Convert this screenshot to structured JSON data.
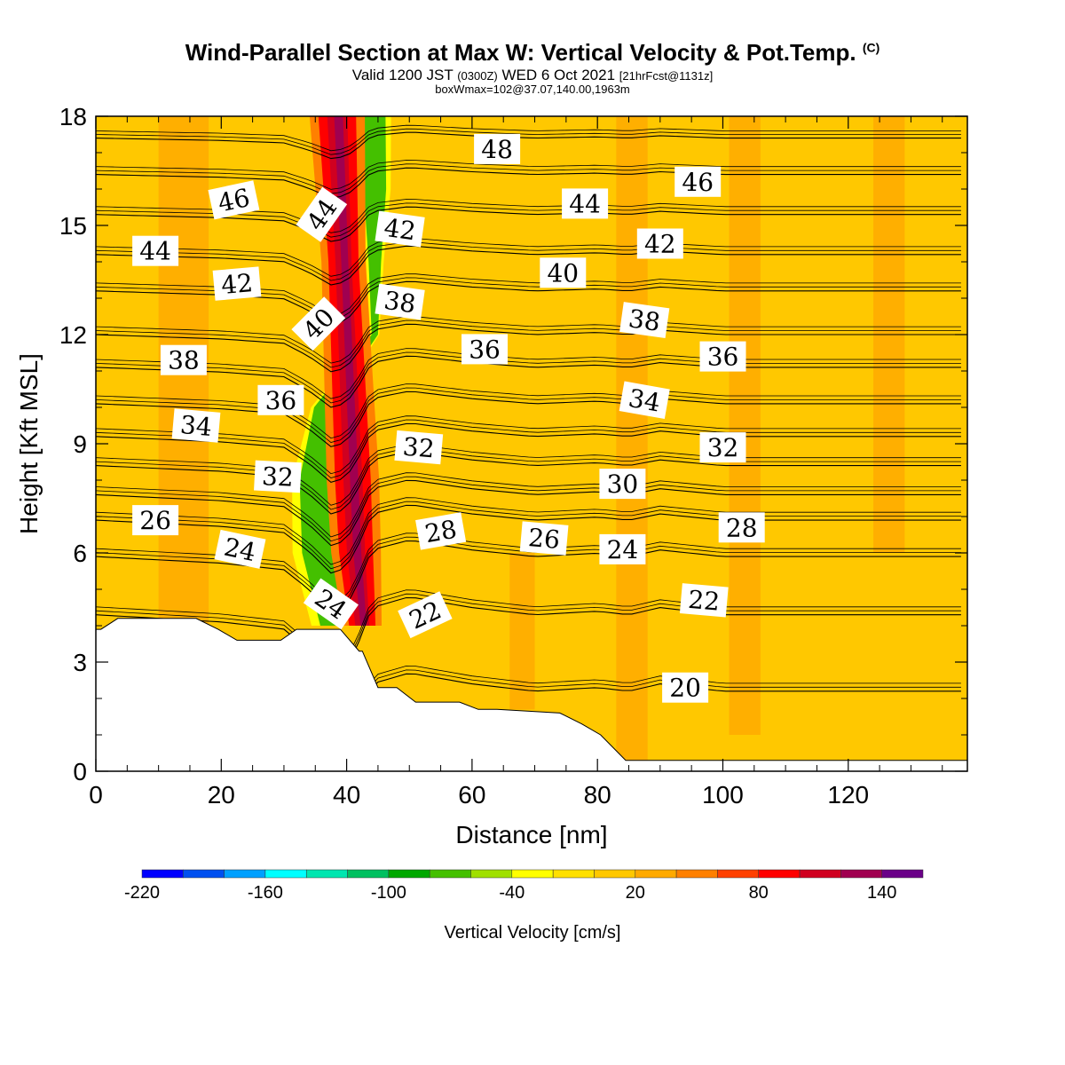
{
  "title": {
    "main": "Wind-Parallel Section at Max W: Vertical Velocity & Pot.Temp.",
    "copyright": "(C)",
    "valid_prefix": "Valid 1200 JST",
    "valid_utc": "(0300Z)",
    "valid_date": "WED 6 Oct 2021",
    "forecast": "[21hrFcst@1131z]",
    "box": "boxWmax=102@37.07,140.00,1963m"
  },
  "chart_data": {
    "type": "heatmap",
    "xlabel": "Distance [nm]",
    "ylabel": "Height [Kft MSL]",
    "xlim": [
      0,
      139
    ],
    "ylim": [
      0,
      18
    ],
    "x_ticks": [
      0,
      20,
      40,
      60,
      80,
      100,
      120
    ],
    "y_ticks": [
      0,
      3,
      6,
      9,
      12,
      15,
      18
    ],
    "terrain_profile": {
      "x": [
        0,
        0.8,
        0.8,
        3.5,
        3.5,
        16,
        16,
        19.5,
        19.5,
        22.5,
        22.5,
        29.5,
        29.5,
        32,
        32,
        39,
        39,
        42,
        42,
        42.5,
        42.5,
        45,
        45,
        48,
        48,
        51,
        51,
        58,
        58,
        61,
        61,
        64,
        64,
        74,
        74,
        77.5,
        77.5,
        80.5,
        80.5,
        84.5,
        84.5,
        139
      ],
      "y": [
        3.9,
        3.9,
        3.9,
        4.2,
        4.2,
        4.2,
        4.2,
        3.9,
        3.9,
        3.6,
        3.6,
        3.6,
        3.6,
        3.9,
        3.9,
        3.9,
        3.9,
        3.3,
        3.3,
        3.3,
        3.3,
        2.3,
        2.3,
        2.3,
        2.3,
        1.9,
        1.9,
        1.9,
        1.9,
        1.7,
        1.7,
        1.7,
        1.7,
        1.6,
        1.6,
        1.3,
        1.3,
        1.0,
        1.0,
        0.3,
        0.3,
        0.3
      ]
    },
    "fill_field": "vertical_velocity_cm_s",
    "fill_regions": [
      {
        "level": 0,
        "x_start": 0,
        "x_end": 139,
        "y_bottom": 0,
        "y_top": 18
      },
      {
        "level": 20,
        "x_start": 10,
        "x_end": 18,
        "y_bottom": 3.5,
        "y_top": 18
      },
      {
        "level": 20,
        "x_start": 66,
        "x_end": 70,
        "y_bottom": 1.7,
        "y_top": 6
      },
      {
        "level": 20,
        "x_start": 83,
        "x_end": 88,
        "y_bottom": 0.3,
        "y_top": 18
      },
      {
        "level": 20,
        "x_start": 101,
        "x_end": 106,
        "y_bottom": 1.0,
        "y_top": 18
      },
      {
        "level": 20,
        "x_start": 124,
        "x_end": 129,
        "y_bottom": 6,
        "y_top": 18
      }
    ],
    "updraft_core": [
      {
        "y": 4.0,
        "x_center": 42.5,
        "half_width_green": 3.5,
        "half_width_red": 1.4,
        "green_offset": -3.2
      },
      {
        "y": 6.0,
        "x_center": 41.5,
        "half_width_green": 3.8,
        "half_width_red": 1.8,
        "green_offset": -4.8
      },
      {
        "y": 8.0,
        "x_center": 41.0,
        "half_width_green": 3.0,
        "half_width_red": 1.9,
        "green_offset": -5.5
      },
      {
        "y": 10.0,
        "x_center": 40.5,
        "half_width_green": 1.2,
        "half_width_red": 1.8,
        "green_offset": -4.5
      },
      {
        "y": 12.0,
        "x_center": 40.0,
        "half_width_green": 0.5,
        "half_width_red": 1.7,
        "green_offset": 4.5
      },
      {
        "y": 14.0,
        "x_center": 39.5,
        "half_width_green": 1.0,
        "half_width_red": 1.6,
        "green_offset": 5.0
      },
      {
        "y": 16.0,
        "x_center": 39.0,
        "half_width_green": 1.8,
        "half_width_red": 1.8,
        "green_offset": 5.5
      },
      {
        "y": 18.0,
        "x_center": 38.5,
        "half_width_green": 2.2,
        "half_width_red": 2.0,
        "green_offset": 5.5
      }
    ],
    "contour_field": "potential_temperature",
    "contour_base_height": {
      "x": [
        0,
        20,
        30,
        34,
        38,
        41,
        44,
        50,
        60,
        70,
        80,
        85,
        90,
        100,
        110,
        120,
        139
      ],
      "h": [
        0,
        -0.2,
        -0.4,
        -1.0,
        -1.8,
        -1.2,
        0.2,
        0.5,
        0.2,
        0.0,
        0.1,
        0.0,
        0.2,
        0.0,
        0.0,
        0.0,
        0.0
      ]
    },
    "contour_levels": [
      {
        "value": 20,
        "y": 2.2
      },
      {
        "value": 22,
        "y": 4.3
      },
      {
        "value": 24,
        "y": 5.9
      },
      {
        "value": 26,
        "y": 6.9
      },
      {
        "value": 28,
        "y": 7.6
      },
      {
        "value": 30,
        "y": 8.4
      },
      {
        "value": 32,
        "y": 9.2
      },
      {
        "value": 34,
        "y": 10.1
      },
      {
        "value": 36,
        "y": 11.1
      },
      {
        "value": 38,
        "y": 12.0
      },
      {
        "value": 40,
        "y": 13.2
      },
      {
        "value": 42,
        "y": 14.2
      },
      {
        "value": 44,
        "y": 15.3
      },
      {
        "value": 46,
        "y": 16.4
      },
      {
        "value": 48,
        "y": 17.4
      }
    ],
    "contour_labels": [
      {
        "text": "48",
        "x": 64,
        "y": 17.1,
        "angle": 0
      },
      {
        "text": "46",
        "x": 22,
        "y": 15.7,
        "angle": -12
      },
      {
        "text": "46",
        "x": 96,
        "y": 16.2,
        "angle": 0
      },
      {
        "text": "44",
        "x": 9.5,
        "y": 14.3,
        "angle": 0
      },
      {
        "text": "44",
        "x": 36,
        "y": 15.3,
        "angle": -55
      },
      {
        "text": "44",
        "x": 78,
        "y": 15.6,
        "angle": 0
      },
      {
        "text": "42",
        "x": 22.5,
        "y": 13.4,
        "angle": -5
      },
      {
        "text": "42",
        "x": 48.5,
        "y": 14.9,
        "angle": 8
      },
      {
        "text": "42",
        "x": 90,
        "y": 14.5,
        "angle": 0
      },
      {
        "text": "40",
        "x": 35.5,
        "y": 12.3,
        "angle": -45
      },
      {
        "text": "40",
        "x": 74.5,
        "y": 13.7,
        "angle": 0
      },
      {
        "text": "38",
        "x": 14,
        "y": 11.3,
        "angle": 0
      },
      {
        "text": "38",
        "x": 48.5,
        "y": 12.9,
        "angle": 8
      },
      {
        "text": "38",
        "x": 87.5,
        "y": 12.4,
        "angle": 8
      },
      {
        "text": "36",
        "x": 29.5,
        "y": 10.2,
        "angle": 0
      },
      {
        "text": "36",
        "x": 62,
        "y": 11.6,
        "angle": 0
      },
      {
        "text": "36",
        "x": 100,
        "y": 11.4,
        "angle": 0
      },
      {
        "text": "34",
        "x": 16,
        "y": 9.5,
        "angle": 5
      },
      {
        "text": "34",
        "x": 87.5,
        "y": 10.2,
        "angle": 10
      },
      {
        "text": "32",
        "x": 29,
        "y": 8.1,
        "angle": 3
      },
      {
        "text": "32",
        "x": 51.5,
        "y": 8.9,
        "angle": 5
      },
      {
        "text": "32",
        "x": 100,
        "y": 8.9,
        "angle": 0
      },
      {
        "text": "30",
        "x": 84,
        "y": 7.9,
        "angle": 0
      },
      {
        "text": "28",
        "x": 55,
        "y": 6.6,
        "angle": -10
      },
      {
        "text": "28",
        "x": 103,
        "y": 6.7,
        "angle": 0
      },
      {
        "text": "26",
        "x": 9.5,
        "y": 6.9,
        "angle": 0
      },
      {
        "text": "26",
        "x": 71.5,
        "y": 6.4,
        "angle": 5
      },
      {
        "text": "24",
        "x": 23,
        "y": 6.1,
        "angle": 12
      },
      {
        "text": "24",
        "x": 37.5,
        "y": 4.6,
        "angle": 35
      },
      {
        "text": "24",
        "x": 84,
        "y": 6.1,
        "angle": 0
      },
      {
        "text": "22",
        "x": 52.5,
        "y": 4.3,
        "angle": -25
      },
      {
        "text": "22",
        "x": 97,
        "y": 4.7,
        "angle": 5
      },
      {
        "text": "20",
        "x": 94,
        "y": 2.3,
        "angle": 0
      }
    ],
    "colorbar": {
      "label": "Vertical Velocity [cm/s]",
      "tick_labels": [
        "-220",
        "-160",
        "-100",
        "-40",
        "20",
        "80",
        "140"
      ],
      "levels": [
        -220,
        -200,
        -180,
        -160,
        -140,
        -120,
        -100,
        -80,
        -60,
        -40,
        -20,
        0,
        20,
        40,
        60,
        80,
        100,
        120,
        140,
        160
      ],
      "colors": [
        "#0000ff",
        "#0050f0",
        "#00a0ff",
        "#00ffff",
        "#00e6b0",
        "#00c060",
        "#00a800",
        "#44c000",
        "#a0e000",
        "#ffff00",
        "#ffe000",
        "#ffc800",
        "#ffaa00",
        "#ff8000",
        "#ff4000",
        "#ff0000",
        "#d00020",
        "#a00050",
        "#6a0088"
      ]
    }
  }
}
